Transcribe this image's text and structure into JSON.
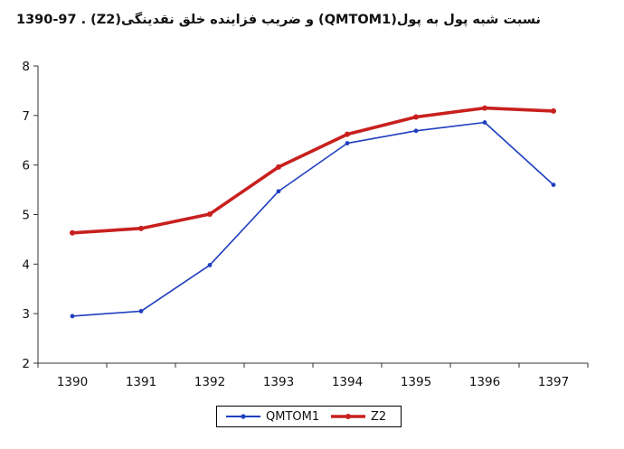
{
  "title": "نسبت شبه پول به پول(QMTOM1) و ضریب فزاینده خلق نقدینگی(Z2) . 1390-97",
  "chart_data": {
    "type": "line",
    "title": "نسبت شبه پول به پول(QMTOM1) و ضریب فزاینده خلق نقدینگی(Z2) . 1390-97",
    "categories": [
      "1390",
      "1391",
      "1392",
      "1393",
      "1394",
      "1395",
      "1396",
      "1397"
    ],
    "series": [
      {
        "name": "QMTOM1",
        "color": "#1f3fbf",
        "values": [
          2.95,
          3.05,
          3.98,
          5.47,
          6.44,
          6.69,
          6.86,
          5.6
        ]
      },
      {
        "name": "Z2",
        "color": "#c8201e",
        "values": [
          4.63,
          4.72,
          5.01,
          5.96,
          6.62,
          6.97,
          7.15,
          7.09
        ]
      }
    ],
    "ylim": [
      2,
      8
    ],
    "yticks": [
      "2",
      "3",
      "4",
      "5",
      "6",
      "7",
      "8"
    ],
    "xlabel": "",
    "ylabel": "",
    "grid": false,
    "legend_position": "bottom"
  }
}
